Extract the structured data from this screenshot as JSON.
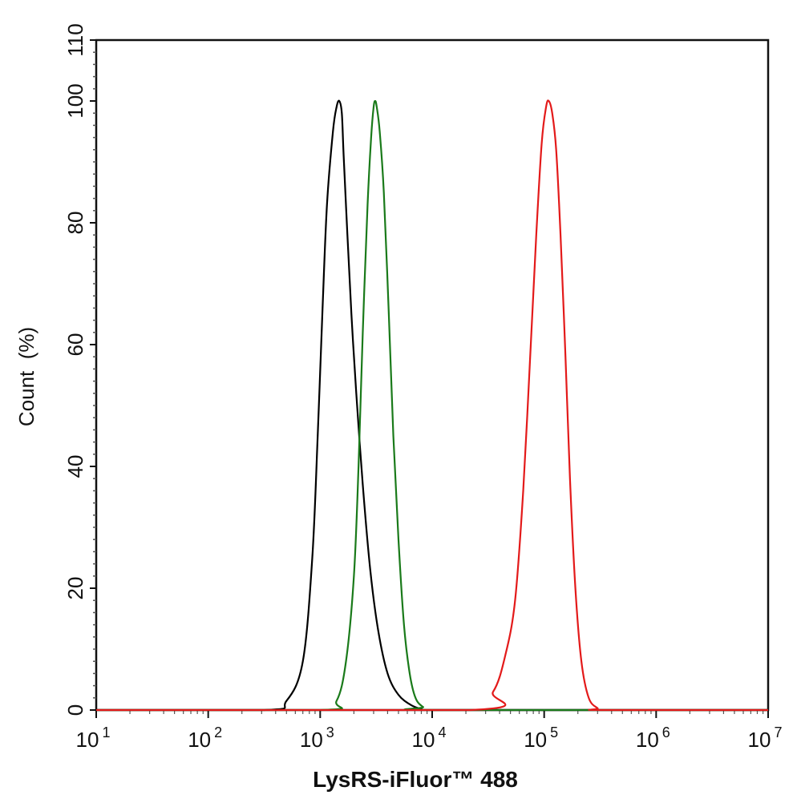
{
  "chart_data": {
    "type": "line",
    "title": "",
    "xlabel": "LysRS-iFluor™ 488",
    "ylabel": "Count  (%)",
    "xscale": "log",
    "xlim": [
      10,
      10000000
    ],
    "ylim": [
      0,
      110
    ],
    "x_tick_exponents": [
      "1",
      "2",
      "3",
      "4",
      "5",
      "6",
      "7"
    ],
    "x_tick_base": "10",
    "y_ticks": [
      "0",
      "20",
      "40",
      "60",
      "80",
      "100",
      "110"
    ],
    "y_tick_values": [
      0,
      20,
      40,
      60,
      80,
      100,
      110
    ],
    "grid": false,
    "series": [
      {
        "color": "#000000",
        "points": [
          [
            316,
            0
          ],
          [
            500,
            1.5
          ],
          [
            700,
            8
          ],
          [
            850,
            25
          ],
          [
            950,
            45
          ],
          [
            1050,
            66
          ],
          [
            1150,
            83
          ],
          [
            1300,
            95
          ],
          [
            1400,
            99
          ],
          [
            1480,
            100
          ],
          [
            1560,
            98
          ],
          [
            1620,
            91
          ],
          [
            1750,
            78
          ],
          [
            1900,
            65
          ],
          [
            2100,
            52
          ],
          [
            2400,
            37
          ],
          [
            2800,
            23
          ],
          [
            3300,
            13
          ],
          [
            4000,
            6
          ],
          [
            5000,
            2.5
          ],
          [
            6500,
            0.8
          ],
          [
            8000,
            0.2
          ],
          [
            10000,
            0
          ]
        ]
      },
      {
        "color": "#1a7a1a",
        "points": [
          [
            1000,
            0
          ],
          [
            1400,
            1.5
          ],
          [
            1700,
            8
          ],
          [
            2000,
            22
          ],
          [
            2200,
            40
          ],
          [
            2400,
            62
          ],
          [
            2650,
            83
          ],
          [
            2850,
            94
          ],
          [
            3000,
            99
          ],
          [
            3100,
            100
          ],
          [
            3200,
            99
          ],
          [
            3400,
            95
          ],
          [
            3700,
            85
          ],
          [
            4100,
            65
          ],
          [
            4500,
            45
          ],
          [
            5000,
            28
          ],
          [
            5600,
            14
          ],
          [
            6300,
            6
          ],
          [
            7100,
            2
          ],
          [
            8300,
            0.5
          ],
          [
            10000,
            0
          ]
        ]
      },
      {
        "color": "#e31a1a",
        "points": [
          [
            22000,
            0
          ],
          [
            35000,
            3
          ],
          [
            45000,
            9
          ],
          [
            55000,
            18
          ],
          [
            65000,
            36
          ],
          [
            75000,
            58
          ],
          [
            85000,
            78
          ],
          [
            95000,
            93
          ],
          [
            104000,
            99
          ],
          [
            110000,
            100
          ],
          [
            118000,
            98
          ],
          [
            128000,
            92
          ],
          [
            140000,
            78
          ],
          [
            155000,
            58
          ],
          [
            170000,
            38
          ],
          [
            190000,
            20
          ],
          [
            215000,
            8
          ],
          [
            250000,
            2
          ],
          [
            300000,
            0.3
          ],
          [
            330000,
            0
          ]
        ]
      }
    ]
  }
}
